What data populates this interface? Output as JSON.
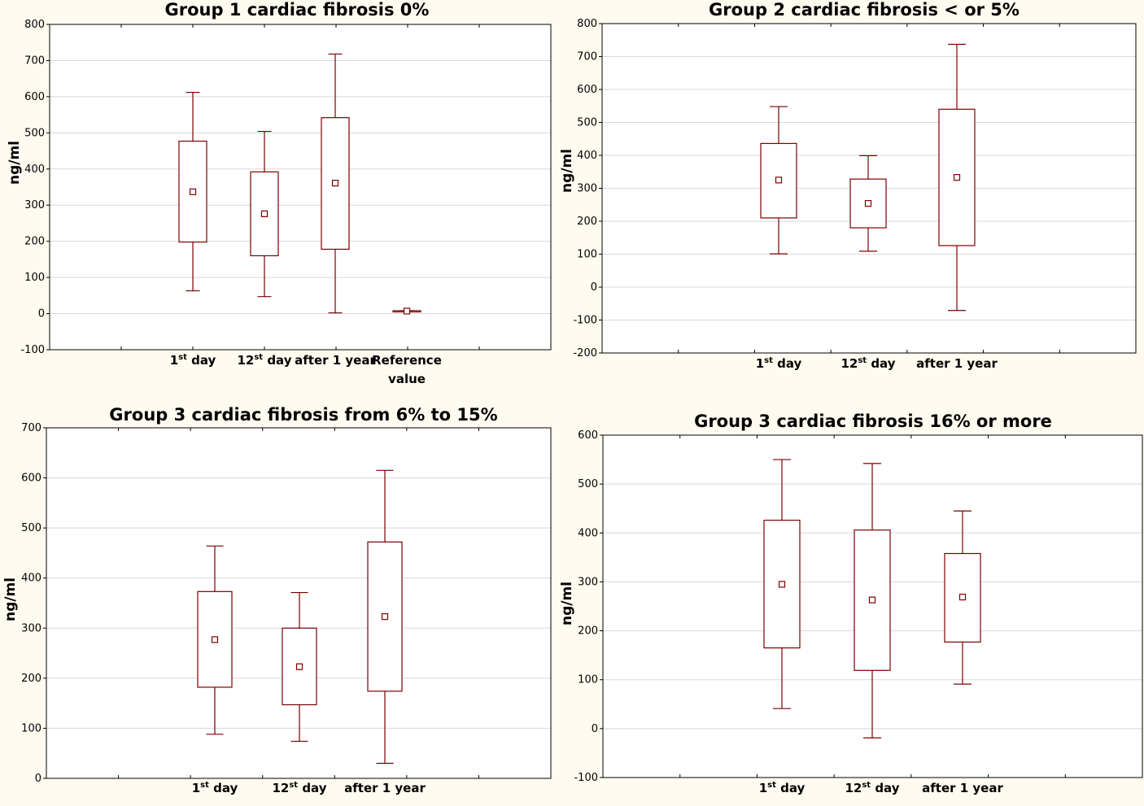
{
  "chart_data": [
    {
      "type": "boxplot",
      "title": "Group 1 cardiac fibrosis 0%",
      "ylabel": "ng/ml",
      "ylim": [
        -100,
        800
      ],
      "yticks": [
        -100,
        0,
        100,
        200,
        300,
        400,
        500,
        600,
        700,
        800
      ],
      "grid": true,
      "categories": [
        {
          "lines": [
            {
              "base": "1",
              "sup": "st",
              "rest": " day"
            }
          ]
        },
        {
          "lines": [
            {
              "base": "12",
              "sup": "st",
              "rest": " day"
            }
          ]
        },
        {
          "lines": [
            {
              "base": "after 1 year"
            }
          ]
        },
        {
          "lines": [
            {
              "base": "Reference"
            },
            {
              "base": "value"
            }
          ]
        }
      ],
      "boxes": [
        {
          "whisker_low": 63,
          "q1": 198,
          "mean": 337,
          "q3": 477,
          "whisker_high": 612
        },
        {
          "whisker_low": 47,
          "q1": 160,
          "mean": 276,
          "q3": 392,
          "whisker_high": 504
        },
        {
          "whisker_low": 2,
          "q1": 178,
          "mean": 361,
          "q3": 542,
          "whisker_high": 718
        },
        {
          "whisker_low": 5,
          "q1": 5,
          "mean": 7,
          "q3": 8,
          "whisker_high": 8
        }
      ]
    },
    {
      "type": "boxplot",
      "title": "Group 2 cardiac fibrosis < or 5%",
      "ylabel": "ng/ml",
      "ylim": [
        -200,
        800
      ],
      "yticks": [
        -200,
        -100,
        0,
        100,
        200,
        300,
        400,
        500,
        600,
        700,
        800
      ],
      "grid": true,
      "categories": [
        {
          "lines": [
            {
              "base": "1",
              "sup": "st",
              "rest": " day"
            }
          ]
        },
        {
          "lines": [
            {
              "base": "12",
              "sup": "st",
              "rest": " day"
            }
          ]
        },
        {
          "lines": [
            {
              "base": "after 1 year"
            }
          ]
        }
      ],
      "boxes": [
        {
          "whisker_low": 101,
          "q1": 210,
          "mean": 325,
          "q3": 436,
          "whisker_high": 548
        },
        {
          "whisker_low": 109,
          "q1": 180,
          "mean": 254,
          "q3": 328,
          "whisker_high": 399
        },
        {
          "whisker_low": -71,
          "q1": 126,
          "mean": 333,
          "q3": 540,
          "whisker_high": 737
        }
      ]
    },
    {
      "type": "boxplot",
      "title": "Group 3 cardiac fibrosis from 6% to 15%",
      "ylabel": "ng/ml",
      "ylim": [
        0,
        700
      ],
      "yticks": [
        0,
        100,
        200,
        300,
        400,
        500,
        600,
        700
      ],
      "grid": true,
      "categories": [
        {
          "lines": [
            {
              "base": "1",
              "sup": "st",
              "rest": " day"
            }
          ]
        },
        {
          "lines": [
            {
              "base": "12",
              "sup": "st",
              "rest": " day"
            }
          ]
        },
        {
          "lines": [
            {
              "base": "after 1 year"
            }
          ]
        }
      ],
      "boxes": [
        {
          "whisker_low": 88,
          "q1": 182,
          "mean": 277,
          "q3": 373,
          "whisker_high": 464
        },
        {
          "whisker_low": 74,
          "q1": 147,
          "mean": 223,
          "q3": 300,
          "whisker_high": 371
        },
        {
          "whisker_low": 30,
          "q1": 174,
          "mean": 323,
          "q3": 472,
          "whisker_high": 615
        }
      ]
    },
    {
      "type": "boxplot",
      "title": "Group 3 cardiac fibrosis 16% or more",
      "ylabel": "ng/ml",
      "ylim": [
        -100,
        600
      ],
      "yticks": [
        -100,
        0,
        100,
        200,
        300,
        400,
        500,
        600
      ],
      "grid": true,
      "categories": [
        {
          "lines": [
            {
              "base": "1",
              "sup": "st",
              "rest": " day"
            }
          ]
        },
        {
          "lines": [
            {
              "base": "12",
              "sup": "st",
              "rest": " day"
            }
          ]
        },
        {
          "lines": [
            {
              "base": "after 1 year"
            }
          ]
        }
      ],
      "boxes": [
        {
          "whisker_low": 41,
          "q1": 165,
          "mean": 295,
          "q3": 426,
          "whisker_high": 550
        },
        {
          "whisker_low": -19,
          "q1": 119,
          "mean": 263,
          "q3": 406,
          "whisker_high": 542
        },
        {
          "whisker_low": 91,
          "q1": 177,
          "mean": 269,
          "q3": 358,
          "whisker_high": 445
        }
      ]
    }
  ],
  "colors": {
    "box_stroke": "#7a0000",
    "whisker": "#7a0000",
    "mean_marker": "#7a0000",
    "grid": "#d8d8d8",
    "plot_bg": "#ffffff",
    "page_bg": "#fffbf0",
    "frame": "#000000"
  }
}
